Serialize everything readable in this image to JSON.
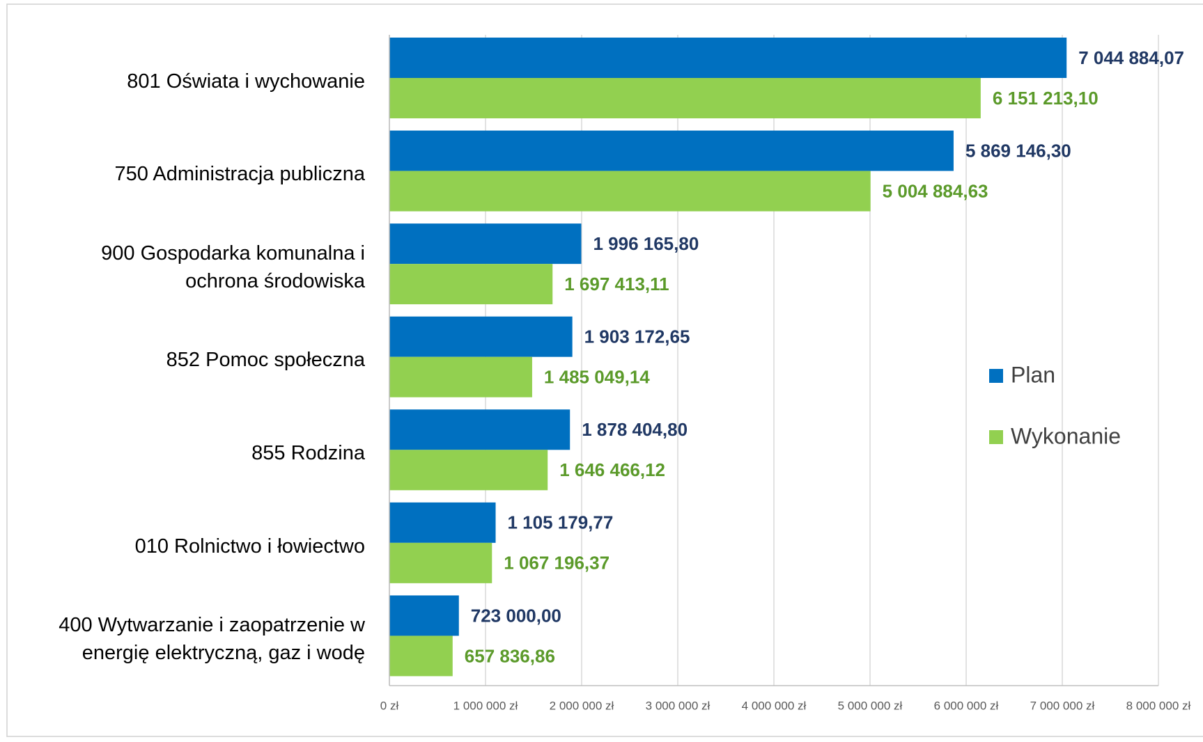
{
  "chart_data": {
    "type": "bar",
    "orientation": "horizontal",
    "categories": [
      "801 Oświata i wychowanie",
      "750 Administracja publiczna",
      "900 Gospodarka komunalna i ochrona środowiska",
      "852 Pomoc społeczna",
      "855 Rodzina",
      "010 Rolnictwo i łowiectwo",
      "400 Wytwarzanie i zaopatrzenie w energię elektryczną, gaz i wodę"
    ],
    "series": [
      {
        "name": "Plan",
        "color": "#0070c0",
        "label_color": "#203864",
        "values": [
          7044884.07,
          5869146.3,
          1996165.8,
          1903172.65,
          1878404.8,
          1105179.77,
          723000.0
        ],
        "value_labels": [
          "7 044 884,07",
          "5 869 146,30",
          "1 996 165,80",
          "1 903 172,65",
          "1 878 404,80",
          "1 105 179,77",
          "723 000,00"
        ]
      },
      {
        "name": "Wykonanie",
        "color": "#92d050",
        "label_color": "#5b9a2a",
        "values": [
          6151213.1,
          5004884.63,
          1697413.11,
          1485049.14,
          1646466.12,
          1067196.37,
          657836.86
        ],
        "value_labels": [
          "6 151 213,10",
          "5 004 884,63",
          "1 697 413,11",
          "1 485 049,14",
          "1 646 466,12",
          "1 067 196,37",
          "657 836,86"
        ]
      }
    ],
    "xlim": [
      0,
      8000000
    ],
    "xticks": [
      {
        "value": 0,
        "label": "0 zł"
      },
      {
        "value": 1000000,
        "label": "1 000 000 zł"
      },
      {
        "value": 2000000,
        "label": "2 000 000 zł"
      },
      {
        "value": 3000000,
        "label": "3 000 000 zł"
      },
      {
        "value": 4000000,
        "label": "4 000 000 zł"
      },
      {
        "value": 5000000,
        "label": "5 000 000 zł"
      },
      {
        "value": 6000000,
        "label": "6 000 000 zł"
      },
      {
        "value": 7000000,
        "label": "7 000 000 zł"
      },
      {
        "value": 8000000,
        "label": "8 000 000 zł"
      }
    ],
    "grid": true,
    "legend": "right"
  }
}
